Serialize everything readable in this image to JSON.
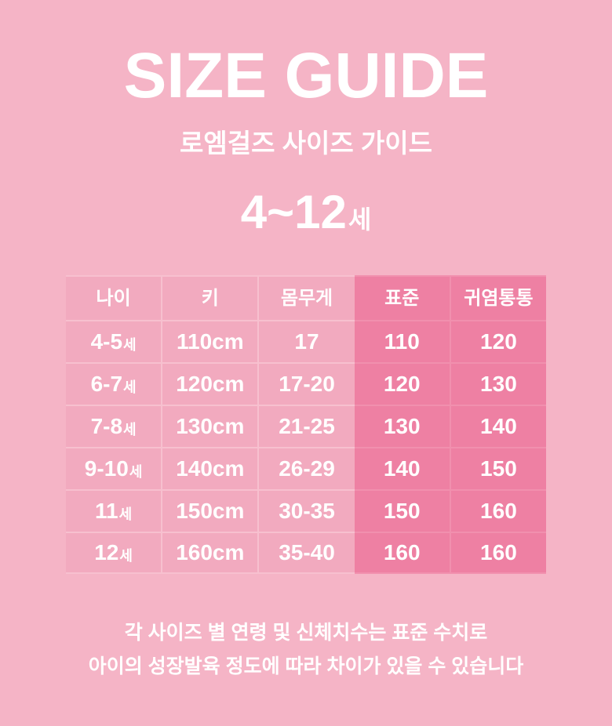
{
  "header": {
    "title": "SIZE GUIDE",
    "subtitle": "로엠걸즈 사이즈 가이드",
    "age_range": {
      "value": "4~12",
      "suffix": "세"
    }
  },
  "colors": {
    "background": "#F5B4C6",
    "cell_light": "#F2AABF",
    "cell_dark": "#EE80A3",
    "separator_light": "#F7C0CF",
    "separator_dark": "#F190AE",
    "text": "#FFFFFF"
  },
  "table": {
    "columns": [
      "나이",
      "키",
      "몸무게",
      "표준",
      "귀염통통"
    ],
    "rows": [
      {
        "age": {
          "num": "4-5",
          "suffix": "세"
        },
        "height": "110cm",
        "weight": "17",
        "standard": "110",
        "chubby": "120"
      },
      {
        "age": {
          "num": "6-7",
          "suffix": "세"
        },
        "height": "120cm",
        "weight": "17-20",
        "standard": "120",
        "chubby": "130"
      },
      {
        "age": {
          "num": "7-8",
          "suffix": "세"
        },
        "height": "130cm",
        "weight": "21-25",
        "standard": "130",
        "chubby": "140"
      },
      {
        "age": {
          "num": "9-10",
          "suffix": "세"
        },
        "height": "140cm",
        "weight": "26-29",
        "standard": "140",
        "chubby": "150"
      },
      {
        "age": {
          "num": "11",
          "suffix": "세"
        },
        "height": "150cm",
        "weight": "30-35",
        "standard": "150",
        "chubby": "160"
      },
      {
        "age": {
          "num": "12",
          "suffix": "세"
        },
        "height": "160cm",
        "weight": "35-40",
        "standard": "160",
        "chubby": "160"
      }
    ]
  },
  "footer": {
    "line1": "각 사이즈 별 연령 및 신체치수는 표준 수치로",
    "line2": "아이의 성장발육 정도에 따라 차이가 있을 수 있습니다"
  }
}
